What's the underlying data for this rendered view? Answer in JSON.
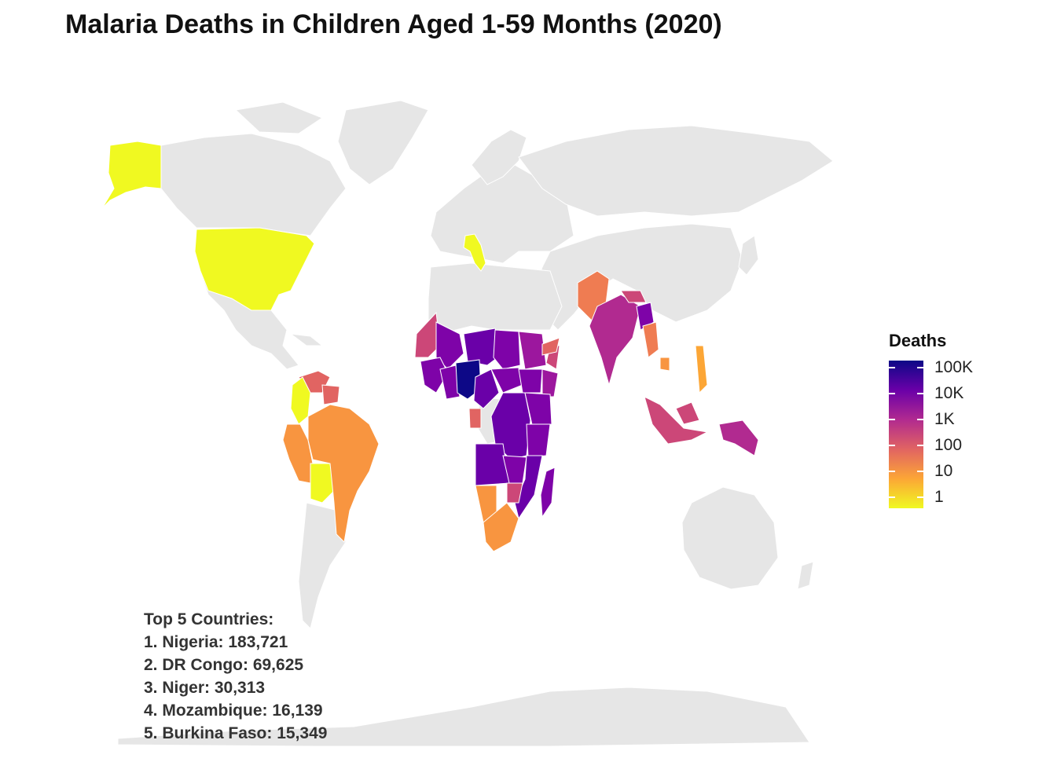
{
  "title": "Malaria Deaths in Children Aged 1-59 Months (2020)",
  "legend": {
    "title": "Deaths",
    "labels": [
      "100K",
      "10K",
      "1K",
      "100",
      "10",
      "1"
    ],
    "gradient_colors": [
      "#0d0887",
      "#6a00a8",
      "#b12a90",
      "#e16462",
      "#fca636",
      "#f0f921"
    ]
  },
  "top5": {
    "heading": "Top 5 Countries:",
    "items": [
      "1. Nigeria: 183,721",
      "2. DR Congo: 69,625",
      "3. Niger: 30,313",
      "4. Mozambique: 16,139",
      "5. Burkina Faso: 15,349"
    ]
  },
  "colors": {
    "no_data": "#e6e6e6",
    "border": "#ffffff"
  }
}
